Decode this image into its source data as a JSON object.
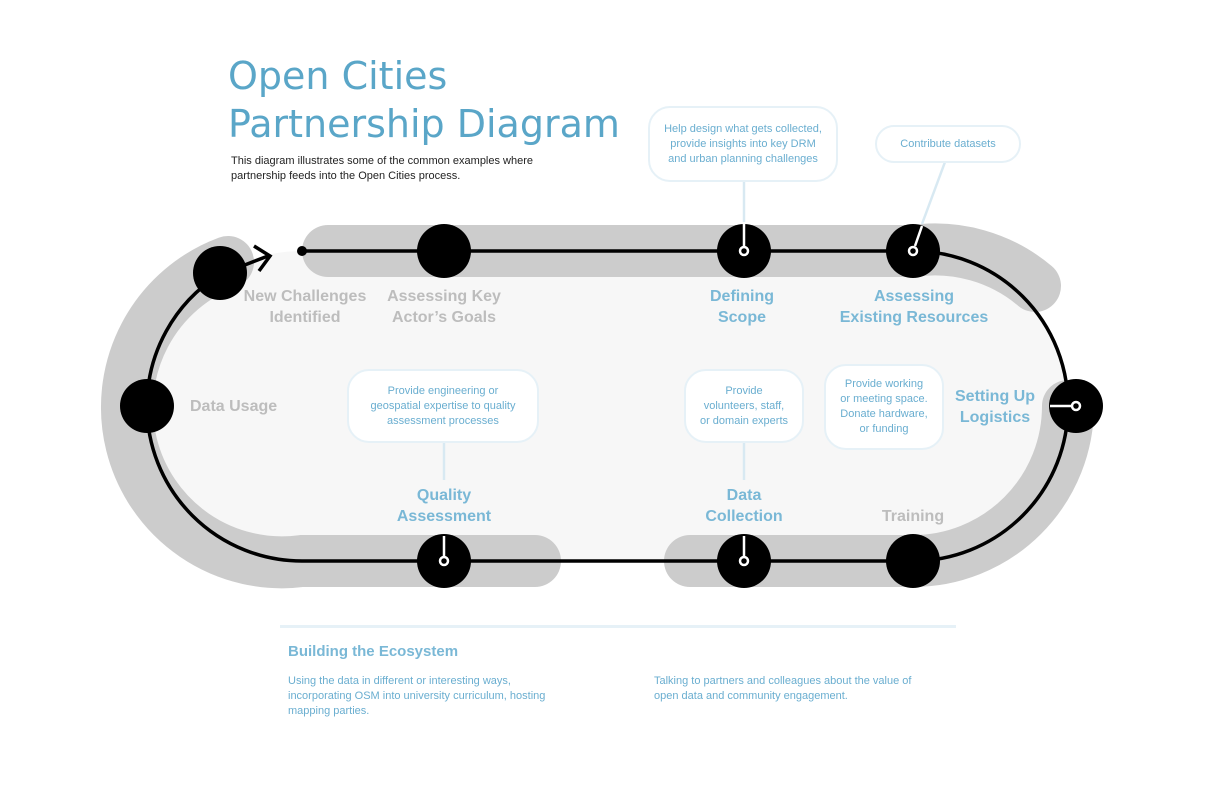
{
  "title": {
    "line1": "Open Cities",
    "line2": "Partnership Diagram"
  },
  "description": {
    "line1": "This diagram illustrates some of the common examples where",
    "line2": "partnership feeds into the Open Cities process."
  },
  "colors": {
    "accent": "#5aa6c8",
    "stage_grey": "#bdbdbd",
    "stage_blue": "#7ab8d6",
    "track": "#000000",
    "band": "#cccccc",
    "inner_fill": "#f7f7f7",
    "bubble_border": "#e6f1f7"
  },
  "stages": {
    "new_challenges": {
      "line1": "New Challenges",
      "line2": "Identified"
    },
    "assessing_goals": {
      "line1": "Assessing Key",
      "line2": "Actor’s Goals"
    },
    "defining_scope": {
      "line1": "Defining",
      "line2": "Scope"
    },
    "assessing_resources": {
      "line1": "Assessing",
      "line2": "Existing Resources"
    },
    "data_usage": {
      "line1": "Data Usage"
    },
    "setting_up_logistics": {
      "line1": "Setting Up",
      "line2": "Logistics"
    },
    "quality_assessment": {
      "line1": "Quality",
      "line2": "Assessment"
    },
    "data_collection": {
      "line1": "Data",
      "line2": "Collection"
    },
    "training": {
      "line1": "Training"
    }
  },
  "bubbles": {
    "scope": {
      "line1": "Help design what gets collected,",
      "line2": "provide insights into key DRM",
      "line3": "and urban planning challenges"
    },
    "datasets": {
      "line1": "Contribute datasets"
    },
    "quality": {
      "line1": "Provide engineering or",
      "line2": "geospatial expertise to quality",
      "line3": "assessment processes"
    },
    "collection": {
      "line1": "Provide",
      "line2": "volunteers, staff,",
      "line3": "or domain experts"
    },
    "logistics": {
      "line1": "Provide working",
      "line2": "or meeting space.",
      "line3": "Donate hardware,",
      "line4": "or funding"
    }
  },
  "ecosystem": {
    "title": "Building the Ecosystem",
    "left": {
      "line1": "Using the data in different or interesting ways,",
      "line2": "incorporating OSM into university curriculum, hosting",
      "line3": "mapping parties."
    },
    "right": {
      "line1": "Talking to partners and colleagues about the value of",
      "line2": "open data and community engagement."
    }
  }
}
